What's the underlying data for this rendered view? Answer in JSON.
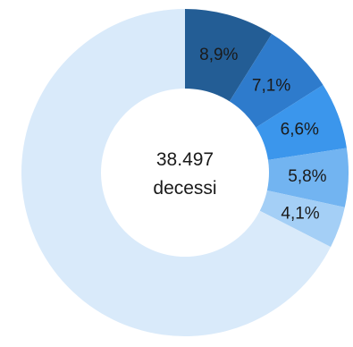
{
  "chart_data": {
    "type": "pie",
    "variant": "donut",
    "center_value": "38.497",
    "center_label": "decessi",
    "slices": [
      {
        "value": 8.9,
        "label": "8,9%",
        "color": "#235d95"
      },
      {
        "value": 7.1,
        "label": "7,1%",
        "color": "#2e7bcc"
      },
      {
        "value": 6.6,
        "label": "6,6%",
        "color": "#3b96ec"
      },
      {
        "value": 5.8,
        "label": "5,8%",
        "color": "#72b4f1"
      },
      {
        "value": 4.1,
        "label": "4,1%",
        "color": "#a4cff6"
      },
      {
        "value": 67.5,
        "label": "",
        "color": "#d9eafa"
      }
    ]
  }
}
